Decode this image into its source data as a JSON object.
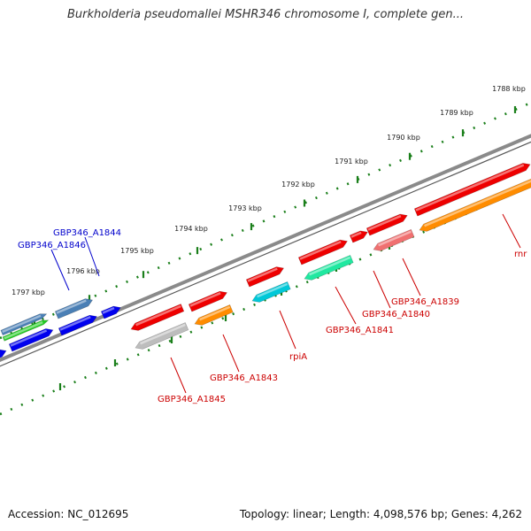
{
  "title": "Burkholderia pseudomallei MSHR346 chromosome I, complete gen...",
  "footer": {
    "accession": "Accession: NC_012695",
    "topology": "Topology: linear; Length: 4,098,576 bp; Genes: 4,262"
  },
  "colors": {
    "backbone": "#7a7a7a",
    "ruler_dots": "#1a7f1a",
    "label_red": "#cc0000",
    "label_blue": "#0000cc"
  },
  "scale": {
    "unit": "kbp",
    "ticks": [
      "1788 kbp",
      "1789 kbp",
      "1790 kbp",
      "1791 kbp",
      "1792 kbp",
      "1793 kbp",
      "1794 kbp",
      "1795 kbp",
      "1796 kbp",
      "1797 kbp"
    ]
  },
  "genes": [
    {
      "label": "GBP346_A1844",
      "color": "#4a7fb5",
      "strand": "+"
    },
    {
      "label": "GBP346_A1846",
      "color": "#4a7fb5",
      "strand": "+"
    },
    {
      "label": "GBP346_A1845",
      "color": "#bdbdbd",
      "strand": "-"
    },
    {
      "label": "GBP346_A1843",
      "color": "#ff8c00",
      "strand": "-"
    },
    {
      "label": "rpiA",
      "color": "#00c8d8",
      "strand": "-"
    },
    {
      "label": "GBP346_A1841",
      "color": "#20e8a0",
      "strand": "-"
    },
    {
      "label": "GBP346_A1840",
      "color": "#f07070",
      "strand": "-"
    },
    {
      "label": "GBP346_A1839",
      "color": "#ff8c00",
      "strand": "-"
    },
    {
      "label": "rnr",
      "color": "#ff8c00",
      "strand": "-"
    }
  ]
}
